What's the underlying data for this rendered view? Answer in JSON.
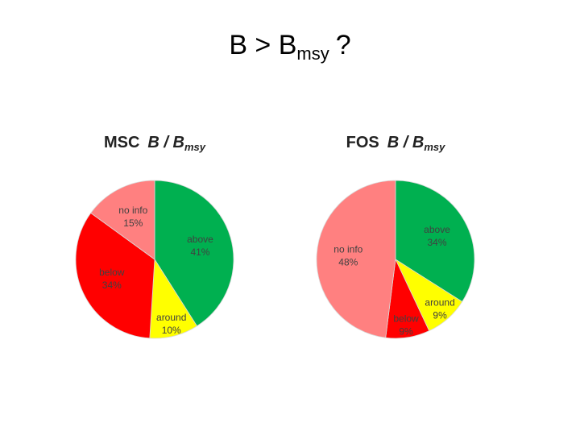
{
  "slide_title": {
    "main": "B > B",
    "sub": "msy",
    "end": "?"
  },
  "chart_data": [
    {
      "type": "pie",
      "title": {
        "org": "MSC",
        "main": "B / B",
        "sub": "msy"
      },
      "categories": [
        "above",
        "around",
        "below",
        "no info"
      ],
      "values": [
        41,
        10,
        34,
        15
      ],
      "value_labels": [
        "41%",
        "10%",
        "34%",
        "15%"
      ],
      "colors": [
        "#00b050",
        "#ffff00",
        "#ff0000",
        "#ff8080"
      ]
    },
    {
      "type": "pie",
      "title": {
        "org": "FOS",
        "main": "B / B",
        "sub": "msy"
      },
      "categories": [
        "above",
        "around",
        "below",
        "no info"
      ],
      "values": [
        34,
        9,
        9,
        48
      ],
      "value_labels": [
        "34%",
        "9%",
        "9%",
        "48%"
      ],
      "colors": [
        "#00b050",
        "#ffff00",
        "#ff0000",
        "#ff8080"
      ]
    }
  ]
}
